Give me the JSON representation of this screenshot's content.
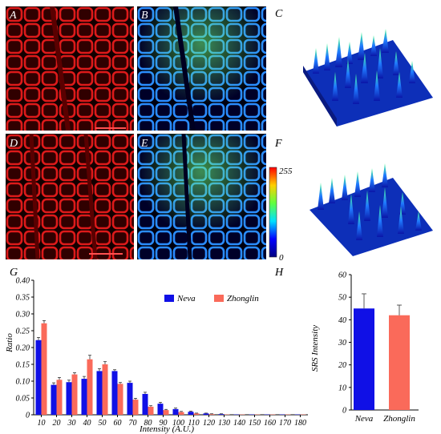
{
  "panel_labels": {
    "a": "A",
    "b": "B",
    "c": "C",
    "d": "D",
    "e": "E",
    "f": "F",
    "g": "G",
    "h": "H"
  },
  "colorbar": {
    "max_label": "255",
    "min_label": "0"
  },
  "chart_data": [
    {
      "type": "bar",
      "panel": "G",
      "xlabel": "Intensity (A.U.)",
      "ylabel": "Ratio",
      "ylim": [
        0,
        0.4
      ],
      "yticks": [
        "0",
        "0.05",
        "0.10",
        "0.15",
        "0.20",
        "0.25",
        "0.30",
        "0.35",
        "0.40"
      ],
      "categories": [
        "10",
        "20",
        "30",
        "40",
        "50",
        "60",
        "70",
        "80",
        "90",
        "100",
        "110",
        "120",
        "130",
        "140",
        "150",
        "160",
        "170",
        "180"
      ],
      "legend_position": "top-right",
      "series": [
        {
          "name": "Neva",
          "color": "#1010e6",
          "values": [
            0.222,
            0.089,
            0.097,
            0.107,
            0.13,
            0.13,
            0.095,
            0.062,
            0.033,
            0.017,
            0.009,
            0.004,
            0.002,
            0.001,
            0.001,
            0.001,
            0.001,
            0.001
          ],
          "errors": [
            0.008,
            0.006,
            0.006,
            0.007,
            0.007,
            0.004,
            0.005,
            0.005,
            0.004,
            0.003,
            0.002,
            0.001,
            0.001,
            0,
            0,
            0,
            0,
            0
          ]
        },
        {
          "name": "Zhonglin",
          "color": "#fa6a5a",
          "values": [
            0.272,
            0.104,
            0.12,
            0.165,
            0.15,
            0.092,
            0.045,
            0.024,
            0.014,
            0.008,
            0.004,
            0.002,
            0.001,
            0.001,
            0.001,
            0.001,
            0.001,
            0.001
          ],
          "errors": [
            0.008,
            0.007,
            0.005,
            0.012,
            0.008,
            0.004,
            0.004,
            0.003,
            0.002,
            0.002,
            0.001,
            0.001,
            0,
            0,
            0,
            0,
            0,
            0
          ]
        }
      ]
    },
    {
      "type": "bar",
      "panel": "H",
      "ylabel": "SRS Intensity",
      "ylim": [
        0,
        60
      ],
      "yticks": [
        "0",
        "10",
        "20",
        "30",
        "40",
        "50",
        "60"
      ],
      "categories": [
        "Neva",
        "Zhonglin"
      ],
      "values": [
        45,
        42
      ],
      "errors": [
        6.5,
        4.5
      ],
      "colors": [
        "#1010e6",
        "#fa6a5a"
      ]
    }
  ]
}
